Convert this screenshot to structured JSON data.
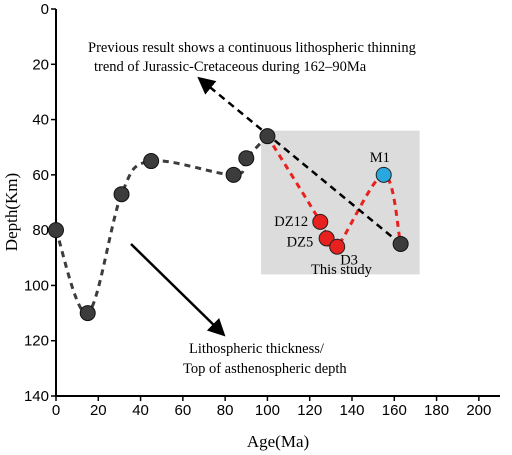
{
  "chart_data": {
    "type": "scatter",
    "title": "",
    "xlabel": "Age(Ma)",
    "ylabel": "Depth(Km)",
    "xlim": [
      0,
      210
    ],
    "ylim": [
      0,
      140
    ],
    "y_inverted": true,
    "xticks": [
      "0",
      "20",
      "40",
      "60",
      "80",
      "100",
      "120",
      "140",
      "160",
      "180",
      "200"
    ],
    "yticks": [
      "0",
      "20",
      "40",
      "60",
      "80",
      "100",
      "120",
      "140"
    ],
    "grid": false,
    "series": [
      {
        "color": "#3c3c3c",
        "line_style": "dashed",
        "line_color": "#3c3c3c",
        "points": [
          {
            "x": 0,
            "y": 80
          },
          {
            "x": 15,
            "y": 110
          },
          {
            "x": 31,
            "y": 67
          },
          {
            "x": 45,
            "y": 55
          },
          {
            "x": 84,
            "y": 60
          },
          {
            "x": 90,
            "y": 54
          },
          {
            "x": 100,
            "y": 46
          },
          {
            "x": 163,
            "y": 85
          }
        ]
      },
      {
        "color": "#e8201e",
        "line_style": "dashed",
        "line_color": "#e8201e",
        "points": [
          {
            "x": 125,
            "y": 77,
            "label": "DZ12"
          },
          {
            "x": 128,
            "y": 83,
            "label": "DZ5"
          },
          {
            "x": 133,
            "y": 86,
            "label": "D3"
          },
          {
            "x": 155,
            "y": 60,
            "label": "M1",
            "color": "#29a8e0"
          }
        ]
      }
    ],
    "shaded_region": {
      "x": [
        97,
        172
      ],
      "y": [
        44,
        96
      ],
      "color": "#dcdcdc",
      "label": "This study"
    },
    "annotations": {
      "previous": [
        "Previous result shows a continuous lithospheric thinning",
        "trend of Jurassic-Cretaceous during 162–90Ma"
      ],
      "lithosphere": [
        "Lithospheric thickness/",
        "Top of  asthenospheric depth"
      ],
      "this_study": "This study"
    }
  }
}
